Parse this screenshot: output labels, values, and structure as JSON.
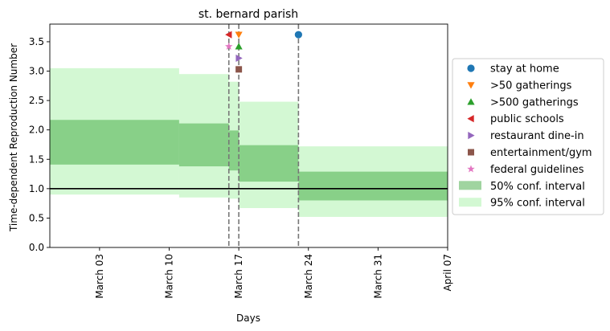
{
  "chart_data": {
    "type": "area",
    "title": "st. bernard parish",
    "xlabel": "Days",
    "ylabel": "Time-dependent Reproduction Number",
    "ylim": [
      0.0,
      3.8
    ],
    "xlim": [
      "2020-02-27",
      "2020-04-07"
    ],
    "x_ticks": [
      {
        "date": "2020-03-03",
        "label": "March 03"
      },
      {
        "date": "2020-03-10",
        "label": "March 10"
      },
      {
        "date": "2020-03-17",
        "label": "March 17"
      },
      {
        "date": "2020-03-24",
        "label": "March 24"
      },
      {
        "date": "2020-03-31",
        "label": "March 31"
      },
      {
        "date": "2020-04-07",
        "label": "April 07"
      }
    ],
    "y_ticks": [
      {
        "value": 0.0,
        "label": "0.0"
      },
      {
        "value": 0.5,
        "label": "0.5"
      },
      {
        "value": 1.0,
        "label": "1.0"
      },
      {
        "value": 1.5,
        "label": "1.5"
      },
      {
        "value": 2.0,
        "label": "2.0"
      },
      {
        "value": 2.5,
        "label": "2.5"
      },
      {
        "value": 3.0,
        "label": "3.0"
      },
      {
        "value": 3.5,
        "label": "3.5"
      }
    ],
    "reference_line": 1.0,
    "intervals": [
      {
        "start": "2020-02-27",
        "end": "2020-03-11",
        "ci50": [
          1.41,
          2.17
        ],
        "ci95": [
          0.9,
          3.05
        ]
      },
      {
        "start": "2020-03-11",
        "end": "2020-03-16",
        "ci50": [
          1.38,
          2.11
        ],
        "ci95": [
          0.85,
          2.95
        ]
      },
      {
        "start": "2020-03-16",
        "end": "2020-03-17",
        "ci50": [
          1.31,
          1.99
        ],
        "ci95": [
          0.83,
          2.82
        ]
      },
      {
        "start": "2020-03-17",
        "end": "2020-03-23",
        "ci50": [
          1.12,
          1.74
        ],
        "ci95": [
          0.67,
          2.48
        ]
      },
      {
        "start": "2020-03-23",
        "end": "2020-04-07",
        "ci50": [
          0.8,
          1.29
        ],
        "ci95": [
          0.52,
          1.72
        ]
      }
    ],
    "event_lines": [
      "2020-03-16",
      "2020-03-17",
      "2020-03-23"
    ],
    "events": [
      {
        "name": "stay at home",
        "date": "2020-03-23",
        "y": 3.62,
        "marker": "circle",
        "color": "#1f77b4"
      },
      {
        "name": ">50 gatherings",
        "date": "2020-03-17",
        "y": 3.62,
        "marker": "triangle-down",
        "color": "#ff7f0e"
      },
      {
        "name": ">500 gatherings",
        "date": "2020-03-17",
        "y": 3.42,
        "marker": "triangle-up",
        "color": "#2ca02c"
      },
      {
        "name": "public schools",
        "date": "2020-03-16",
        "y": 3.62,
        "marker": "triangle-left",
        "color": "#d62728"
      },
      {
        "name": "restaurant dine-in",
        "date": "2020-03-17",
        "y": 3.22,
        "marker": "triangle-right",
        "color": "#9467bd"
      },
      {
        "name": "entertainment/gym",
        "date": "2020-03-17",
        "y": 3.03,
        "marker": "square",
        "color": "#8c564b"
      },
      {
        "name": "federal guidelines",
        "date": "2020-03-16",
        "y": 3.42,
        "marker": "star",
        "color": "#e377c2"
      }
    ],
    "ci_legend": [
      {
        "name": "50% conf. interval",
        "color": "#2ca02c",
        "opacity": 0.45
      },
      {
        "name": "95% conf. interval",
        "color": "#90ee90",
        "opacity": 0.4
      }
    ],
    "legend_position": "right, outside plot",
    "grid": false
  }
}
